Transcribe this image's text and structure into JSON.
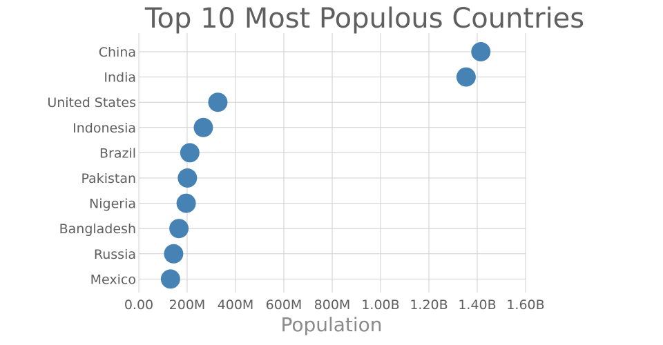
{
  "chart_data": {
    "type": "scatter",
    "title": "Top 10 Most Populous Countries",
    "xlabel": "Population",
    "ylabel": "",
    "categories": [
      "China",
      "India",
      "United States",
      "Indonesia",
      "Brazil",
      "Pakistan",
      "Nigeria",
      "Bangladesh",
      "Russia",
      "Mexico"
    ],
    "values": [
      1415000000,
      1354000000,
      327000000,
      267000000,
      211000000,
      201000000,
      196000000,
      166000000,
      144000000,
      131000000
    ],
    "xlim": [
      0,
      1600000000
    ],
    "x_ticks": [
      0,
      200000000,
      400000000,
      600000000,
      800000000,
      1000000000,
      1200000000,
      1400000000,
      1600000000
    ],
    "x_tick_labels": [
      "0.00",
      "200M",
      "400M",
      "600M",
      "800M",
      "1.00B",
      "1.20B",
      "1.40B",
      "1.60B"
    ],
    "grid": true,
    "marker_color": "#4682b4"
  }
}
